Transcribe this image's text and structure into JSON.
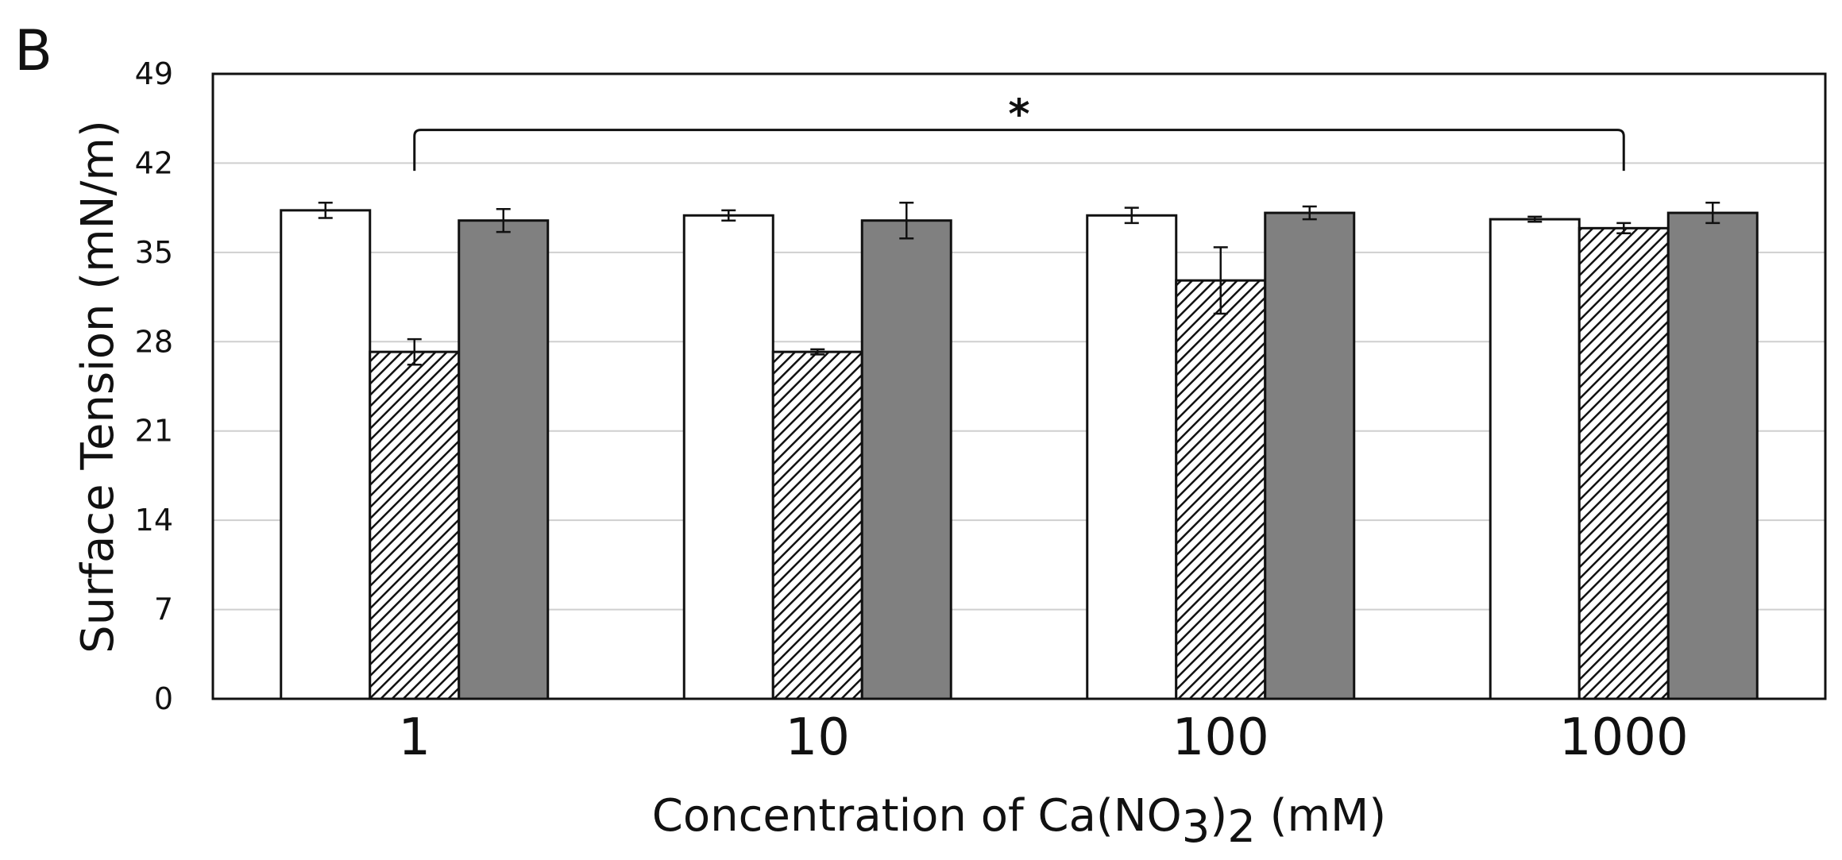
{
  "panel_label": "B",
  "chart_data": {
    "type": "bar",
    "ylabel": "Surface Tension (mN/m)",
    "xlabel": {
      "prefix": "Concentration of Ca(NO",
      "sub1": "3",
      "mid": ")",
      "sub2": "2",
      "suffix": " (mM)"
    },
    "categories": [
      "1",
      "10",
      "100",
      "1000"
    ],
    "ylim": [
      0,
      49
    ],
    "yticks": [
      "0",
      "7",
      "14",
      "21",
      "28",
      "35",
      "42",
      "49"
    ],
    "grid": true,
    "series": [
      {
        "style": "white",
        "values": [
          38.3,
          37.9,
          37.9,
          37.6
        ],
        "errors": [
          0.6,
          0.4,
          0.6,
          0.2
        ]
      },
      {
        "style": "hatched",
        "values": [
          27.2,
          27.2,
          32.8,
          36.9
        ],
        "errors": [
          1.0,
          0.2,
          2.6,
          0.4
        ]
      },
      {
        "style": "dark",
        "values": [
          37.5,
          37.5,
          38.1,
          38.1
        ],
        "errors": [
          0.9,
          1.4,
          0.5,
          0.8
        ]
      }
    ],
    "significance": {
      "from": "1",
      "to": "1000",
      "label": "*"
    },
    "colors": {
      "white": "#ffffff",
      "dark": "#808080",
      "grid": "#cfcfcf",
      "frame": "#111111"
    }
  }
}
